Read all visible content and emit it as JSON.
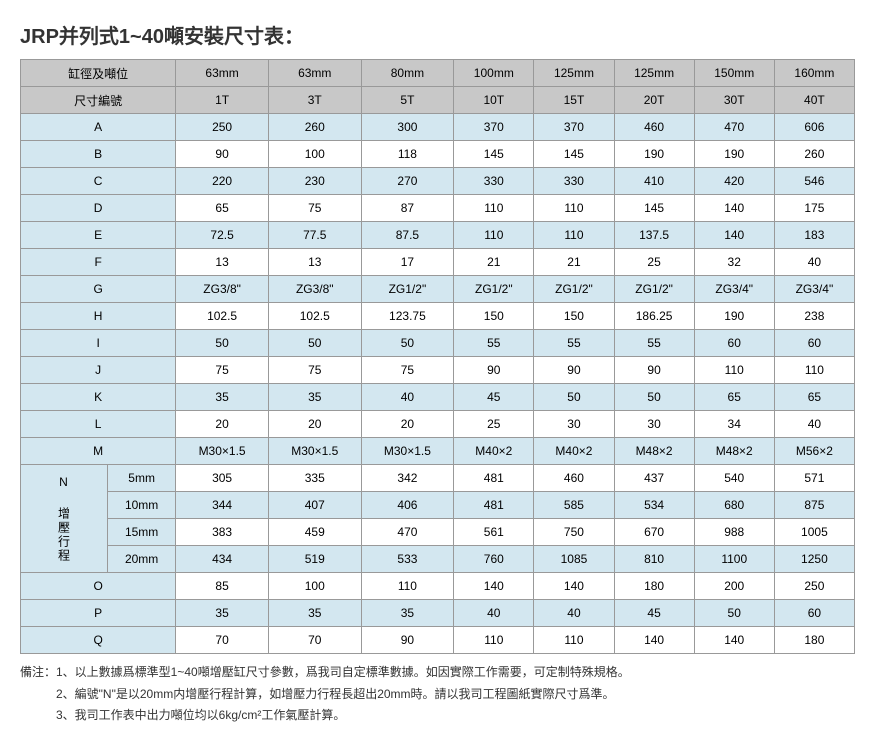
{
  "title": "JRP并列式1~40噸安裝尺寸表：",
  "header1": [
    "缸徑及噸位",
    "63mm",
    "63mm",
    "80mm",
    "100mm",
    "125mm",
    "125mm",
    "150mm",
    "160mm"
  ],
  "header2": [
    "尺寸編號",
    "1T",
    "3T",
    "5T",
    "10T",
    "15T",
    "20T",
    "30T",
    "40T"
  ],
  "rows": [
    {
      "lbl": "A",
      "v": [
        "250",
        "260",
        "300",
        "370",
        "370",
        "460",
        "470",
        "606"
      ],
      "cls": "blue"
    },
    {
      "lbl": "B",
      "v": [
        "90",
        "100",
        "118",
        "145",
        "145",
        "190",
        "190",
        "260"
      ],
      "cls": ""
    },
    {
      "lbl": "C",
      "v": [
        "220",
        "230",
        "270",
        "330",
        "330",
        "410",
        "420",
        "546"
      ],
      "cls": "blue"
    },
    {
      "lbl": "D",
      "v": [
        "65",
        "75",
        "87",
        "110",
        "110",
        "145",
        "140",
        "175"
      ],
      "cls": ""
    },
    {
      "lbl": "E",
      "v": [
        "72.5",
        "77.5",
        "87.5",
        "110",
        "110",
        "137.5",
        "140",
        "183"
      ],
      "cls": "blue"
    },
    {
      "lbl": "F",
      "v": [
        "13",
        "13",
        "17",
        "21",
        "21",
        "25",
        "32",
        "40"
      ],
      "cls": ""
    },
    {
      "lbl": "G",
      "v": [
        "ZG3/8\"",
        "ZG3/8\"",
        "ZG1/2\"",
        "ZG1/2\"",
        "ZG1/2\"",
        "ZG1/2\"",
        "ZG3/4\"",
        "ZG3/4\""
      ],
      "cls": "blue"
    },
    {
      "lbl": "H",
      "v": [
        "102.5",
        "102.5",
        "123.75",
        "150",
        "150",
        "186.25",
        "190",
        "238"
      ],
      "cls": ""
    },
    {
      "lbl": "I",
      "v": [
        "50",
        "50",
        "50",
        "55",
        "55",
        "55",
        "60",
        "60"
      ],
      "cls": "blue"
    },
    {
      "lbl": "J",
      "v": [
        "75",
        "75",
        "75",
        "90",
        "90",
        "90",
        "110",
        "110"
      ],
      "cls": ""
    },
    {
      "lbl": "K",
      "v": [
        "35",
        "35",
        "40",
        "45",
        "50",
        "50",
        "65",
        "65"
      ],
      "cls": "blue"
    },
    {
      "lbl": "L",
      "v": [
        "20",
        "20",
        "20",
        "25",
        "30",
        "30",
        "34",
        "40"
      ],
      "cls": ""
    },
    {
      "lbl": "M",
      "v": [
        "M30×1.5",
        "M30×1.5",
        "M30×1.5",
        "M40×2",
        "M40×2",
        "M48×2",
        "M48×2",
        "M56×2"
      ],
      "cls": "blue"
    }
  ],
  "nLabel": "N 增壓行程",
  "nRows": [
    {
      "lbl": "5mm",
      "v": [
        "305",
        "335",
        "342",
        "481",
        "460",
        "437",
        "540",
        "571"
      ],
      "cls": ""
    },
    {
      "lbl": "10mm",
      "v": [
        "344",
        "407",
        "406",
        "481",
        "585",
        "534",
        "680",
        "875"
      ],
      "cls": "blue"
    },
    {
      "lbl": "15mm",
      "v": [
        "383",
        "459",
        "470",
        "561",
        "750",
        "670",
        "988",
        "1005"
      ],
      "cls": ""
    },
    {
      "lbl": "20mm",
      "v": [
        "434",
        "519",
        "533",
        "760",
        "1085",
        "810",
        "1100",
        "1250"
      ],
      "cls": "blue"
    }
  ],
  "tailRows": [
    {
      "lbl": "O",
      "v": [
        "85",
        "100",
        "110",
        "140",
        "140",
        "180",
        "200",
        "250"
      ],
      "cls": ""
    },
    {
      "lbl": "P",
      "v": [
        "35",
        "35",
        "35",
        "40",
        "40",
        "45",
        "50",
        "60"
      ],
      "cls": "blue"
    },
    {
      "lbl": "Q",
      "v": [
        "70",
        "70",
        "90",
        "110",
        "110",
        "140",
        "140",
        "180"
      ],
      "cls": ""
    }
  ],
  "notesLabel": "備注：",
  "notes": [
    "1、以上數據爲標準型1~40噸增壓缸尺寸參數，爲我司自定標準數據。如因實際工作需要，可定制特殊規格。",
    "2、編號\"N\"是以20mm内增壓行程計算，如增壓力行程長超出20mm時。請以我司工程圖紙實際尺寸爲準。",
    "3、我司工作表中出力噸位均以6kg/cm²工作氣壓計算。"
  ],
  "style": {
    "hdrBg": "#c8c8c8",
    "blueBg": "#d3e7f0",
    "borderColor": "#999",
    "fontSize": 12,
    "titleFontSize": 20
  }
}
